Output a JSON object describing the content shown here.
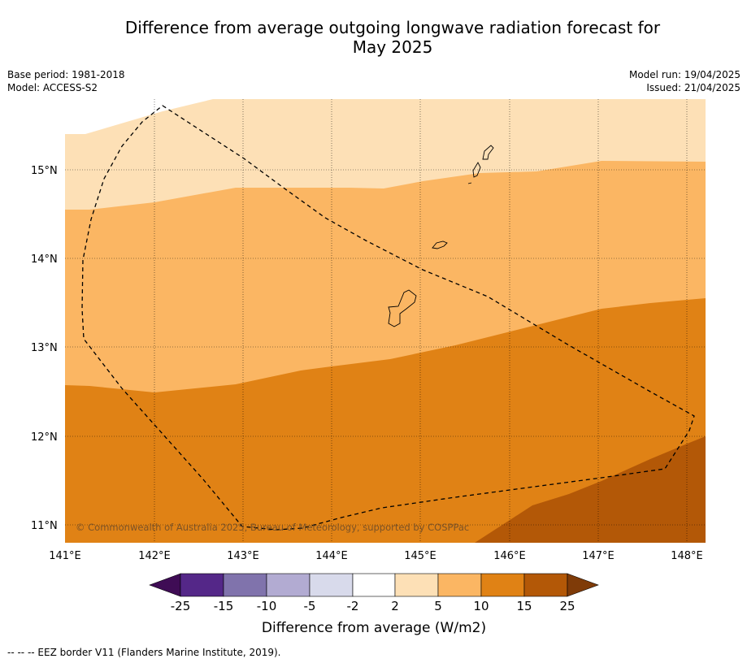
{
  "title": {
    "line1": "Difference from average outgoing longwave radiation forecast for",
    "line2": "May 2025"
  },
  "meta": {
    "base_period": "Base period: 1981-2018",
    "model": "Model: ACCESS-S2",
    "model_run": "Model run: 19/04/2025",
    "issued": "Issued: 21/04/2025"
  },
  "map": {
    "copyright": "© Commonwealth of Australia 2025, Bureau of Meteorology, supported by COSPPac",
    "lat_labels": [
      "15°N",
      "14°N",
      "13°N",
      "12°N",
      "11°N"
    ],
    "lon_labels": [
      "141°E",
      "142°E",
      "143°E",
      "144°E",
      "145°E",
      "146°E",
      "147°E",
      "148°E"
    ],
    "lon_range": [
      141,
      148.2
    ],
    "lat_range": [
      10.8,
      15.8
    ],
    "colors": {
      "band_2_5": "#fde0b6",
      "band_5_10": "#fbb663",
      "band_10_15": "#e08215",
      "band_15_25": "#b35807",
      "eez_line": "#000000"
    }
  },
  "colorbar": {
    "label": "Difference from average (W/m2)",
    "ticks": [
      "-25",
      "-15",
      "-10",
      "-5",
      "-2",
      "2",
      "5",
      "10",
      "15",
      "25"
    ],
    "colors": [
      "#3f0c55",
      "#542788",
      "#8073ac",
      "#b2abd2",
      "#d8daeb",
      "#ffffff",
      "#fde0b6",
      "#fbb663",
      "#e08215",
      "#b35807",
      "#7f3b08"
    ]
  },
  "footer": "--  --  -- EEZ border V11 (Flanders Marine Institute, 2019)."
}
